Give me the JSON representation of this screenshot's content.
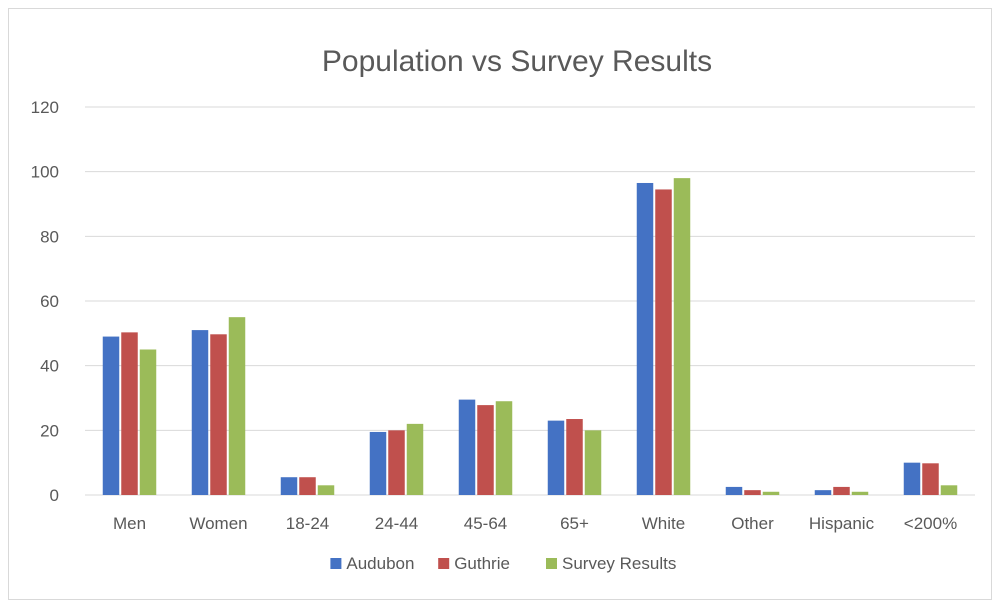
{
  "chart_data": {
    "type": "bar",
    "title": "Population vs Survey Results",
    "xlabel": "",
    "ylabel": "",
    "categories": [
      "Men",
      "Women",
      "18-24",
      "24-44",
      "45-64",
      "65+",
      "White",
      "Other",
      "Hispanic",
      "<200%"
    ],
    "series": [
      {
        "name": "Audubon",
        "color": "#4472c4",
        "values": [
          49,
          51,
          5.5,
          19.5,
          29.5,
          23,
          96.5,
          2.5,
          1.5,
          10
        ]
      },
      {
        "name": "Guthrie",
        "color": "#c0504d",
        "values": [
          50.3,
          49.7,
          5.5,
          20,
          27.8,
          23.5,
          94.5,
          1.5,
          2.5,
          9.8
        ]
      },
      {
        "name": "Survey Results",
        "color": "#9bbb59",
        "values": [
          45,
          55,
          3,
          22,
          29,
          20,
          98,
          1,
          1,
          3
        ]
      }
    ],
    "ylim": [
      0,
      120
    ],
    "yticks": [
      0,
      20,
      40,
      60,
      80,
      100,
      120
    ],
    "grid": true,
    "legend": "bottom"
  }
}
